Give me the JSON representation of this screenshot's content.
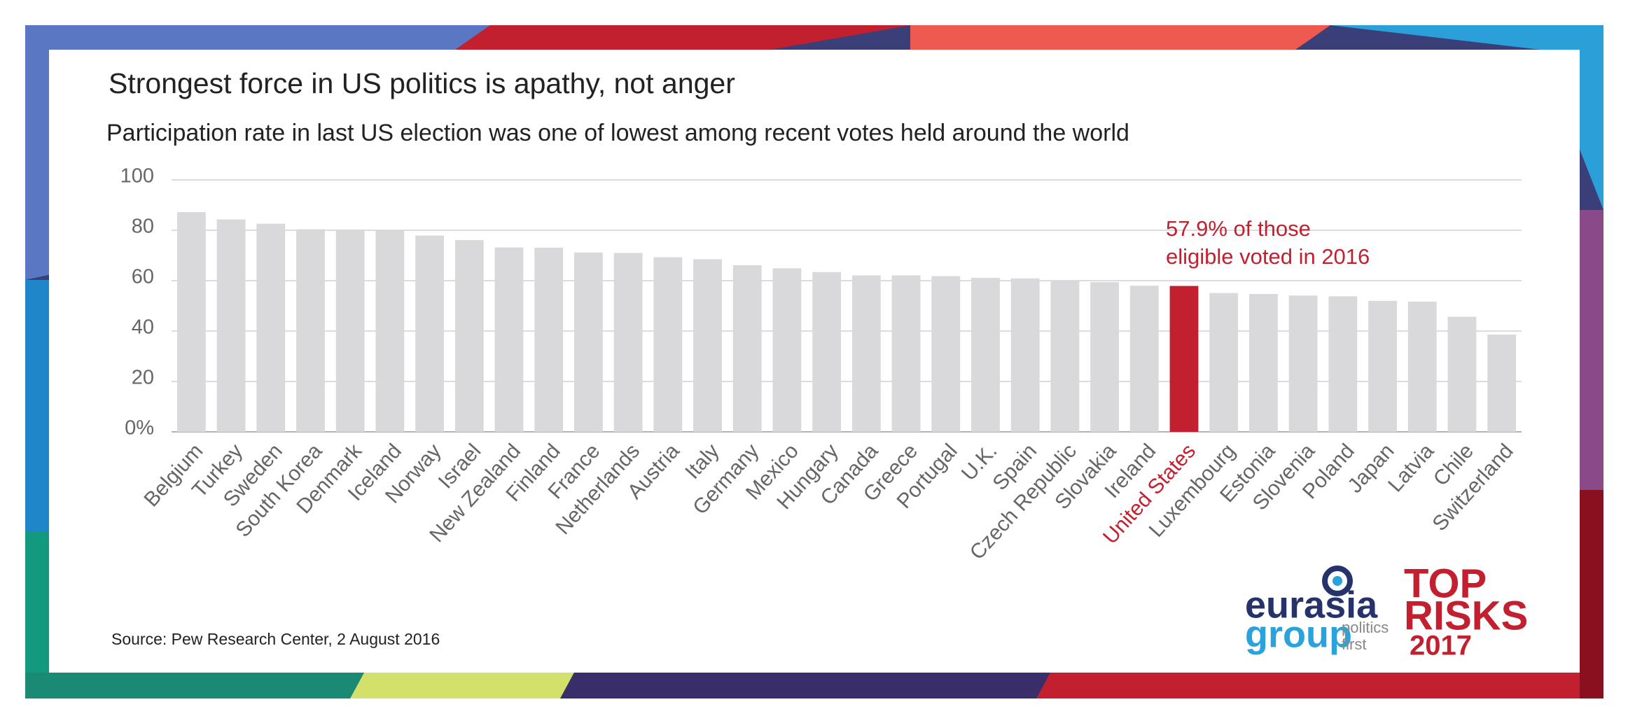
{
  "chart_data": {
    "type": "bar",
    "title": "Strongest force in US politics is apathy, not anger",
    "subtitle": "Participation rate in last US election was one of lowest among recent votes held around the world",
    "categories": [
      "Belgium",
      "Turkey",
      "Sweden",
      "South Korea",
      "Denmark",
      "Iceland",
      "Norway",
      "Israel",
      "New Zealand",
      "Finland",
      "France",
      "Netherlands",
      "Austria",
      "Italy",
      "Germany",
      "Mexico",
      "Hungary",
      "Canada",
      "Greece",
      "Portugal",
      "U.K.",
      "Spain",
      "Czech Republic",
      "Slovakia",
      "Ireland",
      "United States",
      "Luxembourg",
      "Estonia",
      "Slovenia",
      "Poland",
      "Japan",
      "Latvia",
      "Chile",
      "Switzerland"
    ],
    "values": [
      87.2,
      84.3,
      82.6,
      80.4,
      80.3,
      79.9,
      77.9,
      76.1,
      73.2,
      73.1,
      71.2,
      71.0,
      69.3,
      68.5,
      66.1,
      64.9,
      63.4,
      62.1,
      62.1,
      61.8,
      61.1,
      60.9,
      60.0,
      59.4,
      58.0,
      57.9,
      55.1,
      54.7,
      54.1,
      53.8,
      52.0,
      51.7,
      45.7,
      38.6
    ],
    "color": "#d9d9db",
    "highlight_category": "United States",
    "highlight_color": "#c3202f",
    "ylim": [
      0,
      100
    ],
    "yticks": [
      {
        "value": 0,
        "label": "0%"
      },
      20,
      40,
      60,
      80,
      100
    ],
    "grid": true,
    "annotation": [
      "57.9% of those",
      "eligible voted in 2016"
    ],
    "source": "Source: Pew Research Center, 2 August 2016"
  },
  "branding": {
    "logo_top": "eurasia",
    "logo_bottom": "group",
    "tagline": [
      "politics",
      "first"
    ],
    "report": [
      "TOP",
      "RISKS",
      "2017"
    ]
  }
}
